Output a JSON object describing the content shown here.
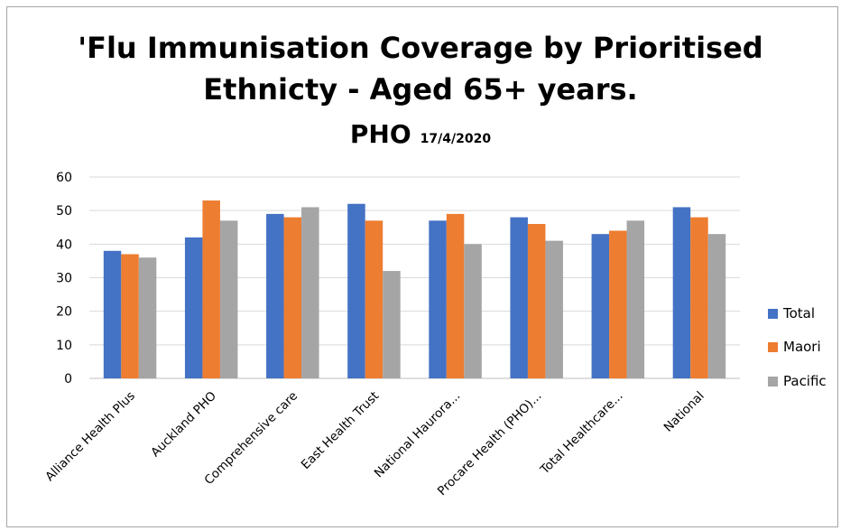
{
  "title": {
    "line1": "'Flu Immunisation Coverage by Prioritised",
    "line2": "Ethnicty - Aged 65+ years.",
    "line3": "PHO",
    "date": "17/4/2020"
  },
  "chart_data": {
    "type": "bar",
    "title": "'Flu Immunisation Coverage by Prioritised Ethnicty - Aged 65+ years. PHO 17/4/2020",
    "categories": [
      "Alliance Health Plus",
      "Auckland PHO",
      "Comprehensive care",
      "East Health Trust",
      "National Haurora...",
      "Procare Health (PHO)...",
      "Total Healthcare...",
      "National"
    ],
    "series": [
      {
        "name": "Total",
        "color": "#4472c4",
        "values": [
          38,
          42,
          49,
          52,
          47,
          48,
          43,
          51
        ]
      },
      {
        "name": "Maori",
        "color": "#ed7d31",
        "values": [
          37,
          53,
          48,
          47,
          49,
          46,
          44,
          48
        ]
      },
      {
        "name": "Pacific",
        "color": "#a5a5a5",
        "values": [
          36,
          47,
          51,
          32,
          40,
          41,
          47,
          43
        ]
      }
    ],
    "ylim": [
      0,
      60
    ],
    "yticks": [
      0,
      10,
      20,
      30,
      40,
      50,
      60
    ],
    "grid": true,
    "legend": "right",
    "xlabel": "",
    "ylabel": ""
  }
}
